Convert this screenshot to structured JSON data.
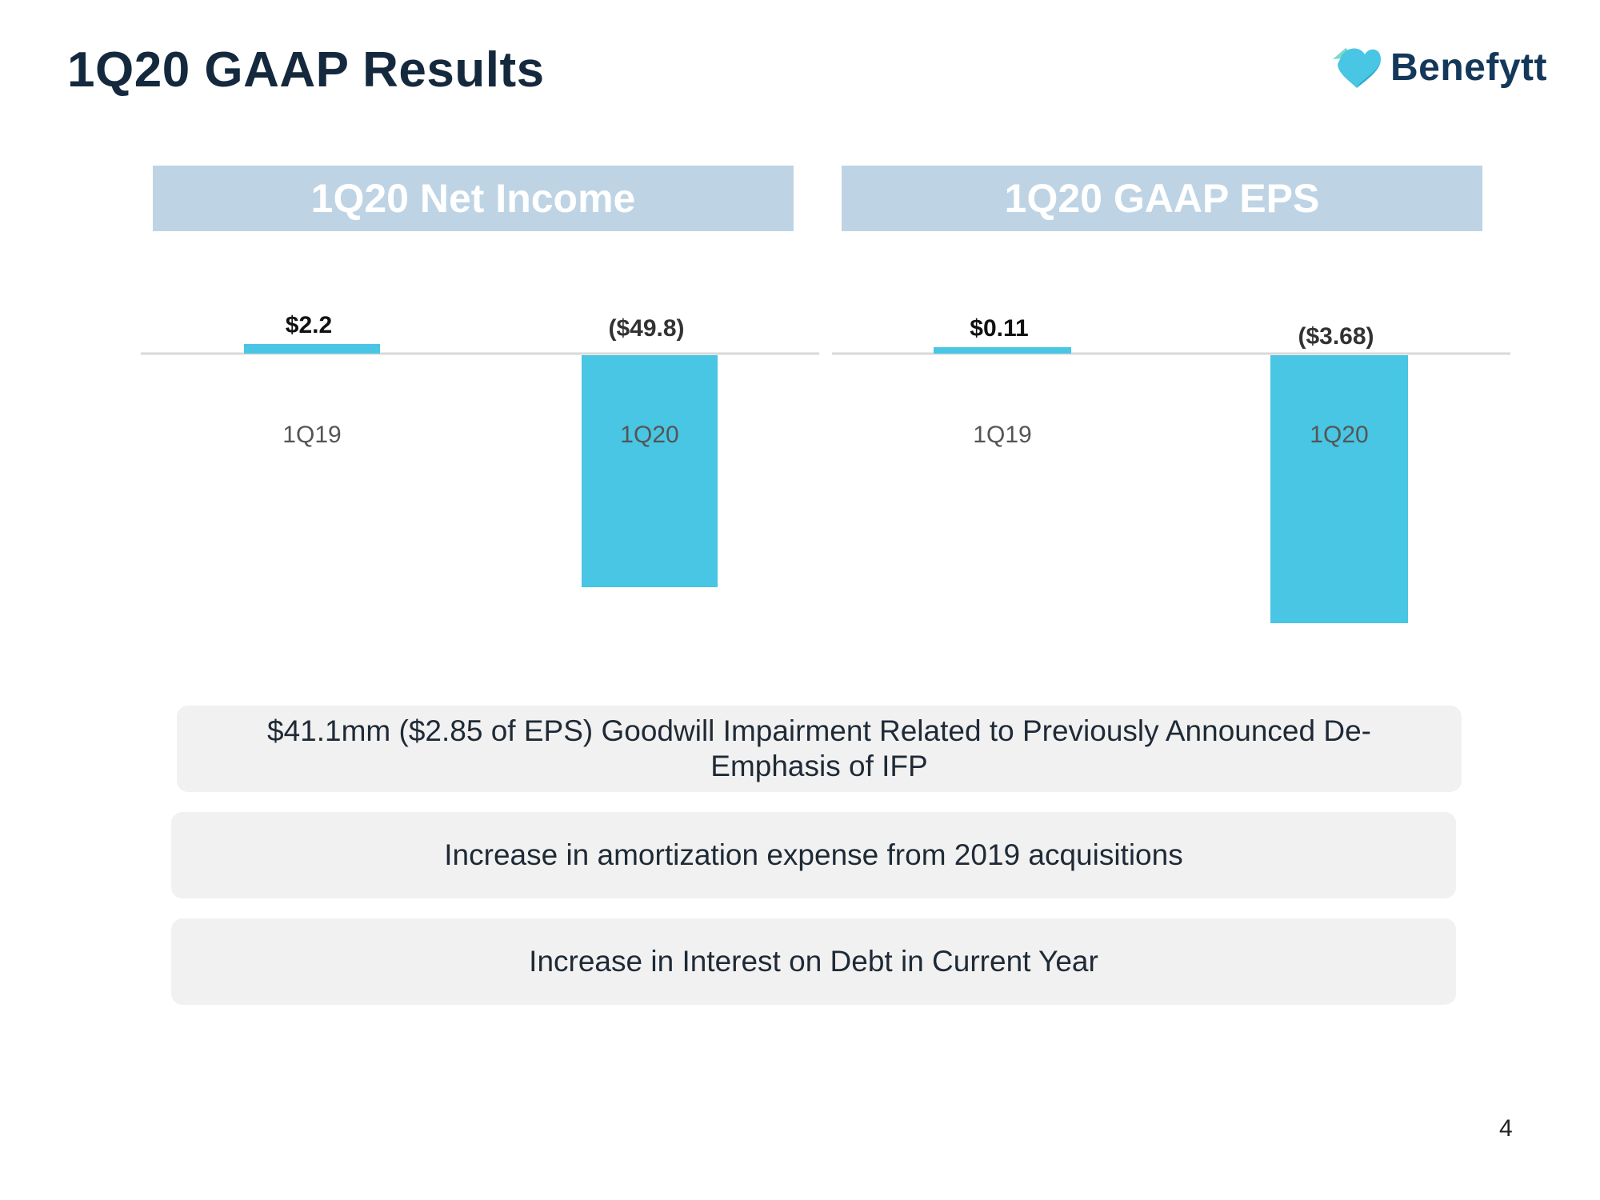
{
  "slide": {
    "title": "1Q20 GAAP Results",
    "page_number": "4"
  },
  "logo": {
    "text": "Benefytt",
    "icon": "heart-logo-icon"
  },
  "colors": {
    "bar": "#48c6e4",
    "header_bg": "#bed4e5",
    "title": "#14293d",
    "note_bg": "#f1f1f1",
    "axis": "#d9d9d9"
  },
  "chart_data": [
    {
      "type": "bar",
      "title": "1Q20 Net Income",
      "categories": [
        "1Q19",
        "1Q20"
      ],
      "values": [
        2.2,
        -49.8
      ],
      "value_labels": [
        "$2.2",
        "($49.8)"
      ],
      "xlabel": "",
      "ylabel": "",
      "ylim": [
        -55,
        5
      ],
      "grid": false
    },
    {
      "type": "bar",
      "title": "1Q20 GAAP EPS",
      "categories": [
        "1Q19",
        "1Q20"
      ],
      "values": [
        0.11,
        -3.68
      ],
      "value_labels": [
        "$0.11",
        "($3.68)"
      ],
      "xlabel": "",
      "ylabel": "",
      "ylim": [
        -4,
        0.5
      ],
      "grid": false
    }
  ],
  "notes": [
    "$41.1mm ($2.85 of EPS) Goodwill Impairment Related to Previously Announced De-Emphasis of IFP",
    "Increase in amortization expense from 2019 acquisitions",
    "Increase in Interest on Debt in Current Year"
  ]
}
